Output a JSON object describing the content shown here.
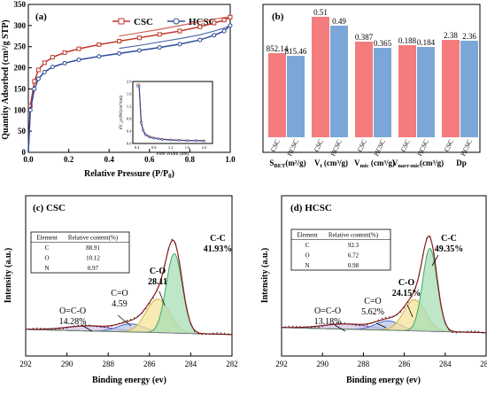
{
  "chart_data": [
    {
      "panel": "(a)",
      "type": "line",
      "xlabel": "Relative Pressure (P/P",
      "xlabel_sub": "0",
      "xlabel_end": ")",
      "ylabel": "Quantity Adsorbed (cm³/g STP)",
      "xlim": [
        0,
        1.0
      ],
      "ylim": [
        0,
        350
      ],
      "xticks": [
        "0.0",
        "0.2",
        "0.4",
        "0.6",
        "0.8",
        "1.0"
      ],
      "yticks": [
        "0",
        "50",
        "100",
        "150",
        "200",
        "250",
        "300",
        "350"
      ],
      "colors": {
        "CSC": "#c0392b",
        "HCSC": "#2e4a9a"
      },
      "series": [
        {
          "name": "CSC",
          "x": [
            0.0,
            0.01,
            0.03,
            0.05,
            0.08,
            0.12,
            0.18,
            0.25,
            0.35,
            0.45,
            0.55,
            0.65,
            0.75,
            0.85,
            0.92,
            0.97,
            1.0
          ],
          "adsorption": [
            0,
            110,
            168,
            195,
            212,
            225,
            236,
            245,
            255,
            263,
            271,
            279,
            287,
            297,
            306,
            313,
            320
          ],
          "desorption": [
            null,
            null,
            null,
            null,
            null,
            null,
            null,
            null,
            null,
            275,
            283,
            291,
            300,
            309,
            315,
            319,
            320
          ]
        },
        {
          "name": "HCSC",
          "x": [
            0.0,
            0.01,
            0.03,
            0.05,
            0.08,
            0.12,
            0.18,
            0.25,
            0.35,
            0.45,
            0.55,
            0.65,
            0.75,
            0.85,
            0.92,
            0.97,
            1.0
          ],
          "adsorption": [
            0,
            100,
            150,
            174,
            190,
            202,
            211,
            219,
            227,
            234,
            241,
            248,
            256,
            266,
            277,
            287,
            300
          ],
          "desorption": [
            null,
            null,
            null,
            null,
            null,
            null,
            null,
            null,
            null,
            246,
            253,
            261,
            269,
            278,
            287,
            294,
            300
          ]
        }
      ],
      "inset": {
        "xlabel": "Pore Width (nm)",
        "ylabel": "dV_p/dW(cm³/nm)",
        "xlim": [
          0.3,
          2.2
        ],
        "ylim": [
          0,
          2.0
        ],
        "xticks": [
          "0.4",
          "0.8",
          "1.2",
          "1.6",
          "2.0"
        ],
        "yticks": [
          "0.0",
          "0.4",
          "0.8",
          "1.2",
          "1.6",
          "2.0"
        ],
        "series": [
          {
            "name": "CSC",
            "x": [
              0.42,
              0.45,
              0.5,
              0.55,
              0.6,
              0.7,
              0.8,
              0.9,
              1.0,
              1.2,
              1.4,
              1.6,
              1.8,
              2.0
            ],
            "y": [
              1.9,
              1.9,
              0.7,
              0.42,
              0.3,
              0.22,
              0.18,
              0.16,
              0.14,
              0.12,
              0.11,
              0.1,
              0.1,
              0.09
            ]
          },
          {
            "name": "HCSC",
            "x": [
              0.42,
              0.45,
              0.5,
              0.55,
              0.6,
              0.7,
              0.8,
              0.9,
              1.0,
              1.2,
              1.4,
              1.6,
              1.8,
              2.0
            ],
            "y": [
              1.85,
              1.85,
              0.65,
              0.4,
              0.28,
              0.2,
              0.17,
              0.15,
              0.13,
              0.11,
              0.1,
              0.09,
              0.09,
              0.08
            ]
          }
        ]
      }
    },
    {
      "panel": "(b)",
      "type": "bar",
      "series_labels": [
        "CSC",
        "HCSC"
      ],
      "colors": {
        "CSC": "#f47c7c",
        "HCSC": "#7aa7d8"
      },
      "groups": [
        {
          "label": "S_BET(m²/g)",
          "label_main": "S",
          "label_sub": "BET",
          "label_tail": "(m²/g)",
          "values": [
            852.14,
            815.46
          ],
          "value_labels": [
            "852.14",
            "815.46"
          ]
        },
        {
          "label": "V_t (cm³/g)",
          "label_main": "V",
          "label_sub": "t",
          "label_tail": " (cm³/g)",
          "values": [
            0.51,
            0.49
          ],
          "value_labels": [
            "0.51",
            "0.49"
          ]
        },
        {
          "label": "V_mic (cm³/g)",
          "label_main": "V",
          "label_sub": "mic",
          "label_tail": " (cm³/g)",
          "values": [
            0.387,
            0.365
          ],
          "value_labels": [
            "0.387",
            "0.365"
          ]
        },
        {
          "label": "V_narr-mic (cm³/g)",
          "label_main": "V",
          "label_sub": "narr-mic",
          "label_tail": "(cm³/g)",
          "values": [
            0.188,
            0.184
          ],
          "value_labels": [
            "0.188",
            "0.184"
          ]
        },
        {
          "label": "Dp",
          "label_main": "Dp",
          "label_sub": "",
          "label_tail": "",
          "values": [
            2.38,
            2.36
          ],
          "value_labels": [
            "2.38",
            "2.36"
          ]
        }
      ]
    },
    {
      "panel": "(c)",
      "sample": "CSC",
      "type": "line",
      "xlabel": "Binding energy (ev)",
      "ylabel": "Intensity (a.u.)",
      "xlim": [
        292,
        282
      ],
      "xticks": [
        "292",
        "290",
        "288",
        "286",
        "284",
        "282"
      ],
      "table": {
        "headers": [
          "Element",
          "Relative content(%)"
        ],
        "rows": [
          [
            "C",
            "88.91"
          ],
          [
            "O",
            "10.12"
          ],
          [
            "N",
            "0.97"
          ]
        ]
      },
      "peaks": [
        {
          "name": "C-C",
          "center": 284.8,
          "height": 0.78,
          "width": 0.55,
          "label": "C-C",
          "value": "41.93%",
          "fill": "#a8ddb5"
        },
        {
          "name": "C-O",
          "center": 285.6,
          "height": 0.33,
          "width": 0.8,
          "label": "C-O",
          "value": "28.11",
          "fill": "#f4e39a"
        },
        {
          "name": "C=O",
          "center": 286.9,
          "height": 0.08,
          "width": 0.9,
          "label": "C=O",
          "value": "4.59",
          "fill": "#b9c5ea"
        },
        {
          "name": "O=C-O",
          "center": 288.9,
          "height": 0.05,
          "width": 1.6,
          "label": "O=C-O",
          "value": "14.28%",
          "fill": "#d6c4ea"
        }
      ]
    },
    {
      "panel": "(d)",
      "sample": "HCSC",
      "type": "line",
      "xlabel": "Binding energy (ev)",
      "ylabel": "Intensity (a.u.)",
      "xlim": [
        292,
        282
      ],
      "xticks": [
        "292",
        "290",
        "288",
        "286",
        "284",
        "282"
      ],
      "table": {
        "headers": [
          "Element",
          "Relative content(%)"
        ],
        "rows": [
          [
            "C",
            "92.3"
          ],
          [
            "O",
            "6.72"
          ],
          [
            "N",
            "0.98"
          ]
        ]
      },
      "peaks": [
        {
          "name": "C-C",
          "center": 284.75,
          "height": 0.8,
          "width": 0.5,
          "label": "C-C",
          "value": "49.35%",
          "fill": "#a8ddb5"
        },
        {
          "name": "C-O",
          "center": 285.5,
          "height": 0.3,
          "width": 0.75,
          "label": "C-O",
          "value": "24.15%",
          "fill": "#f4e39a"
        },
        {
          "name": "C=O",
          "center": 286.8,
          "height": 0.09,
          "width": 0.85,
          "label": "C=O",
          "value": "5.62%",
          "fill": "#b9c5ea"
        },
        {
          "name": "O=C-O",
          "center": 288.8,
          "height": 0.05,
          "width": 1.6,
          "label": "O=C-O",
          "value": "13.18%",
          "fill": "#d6c4ea"
        }
      ]
    }
  ]
}
